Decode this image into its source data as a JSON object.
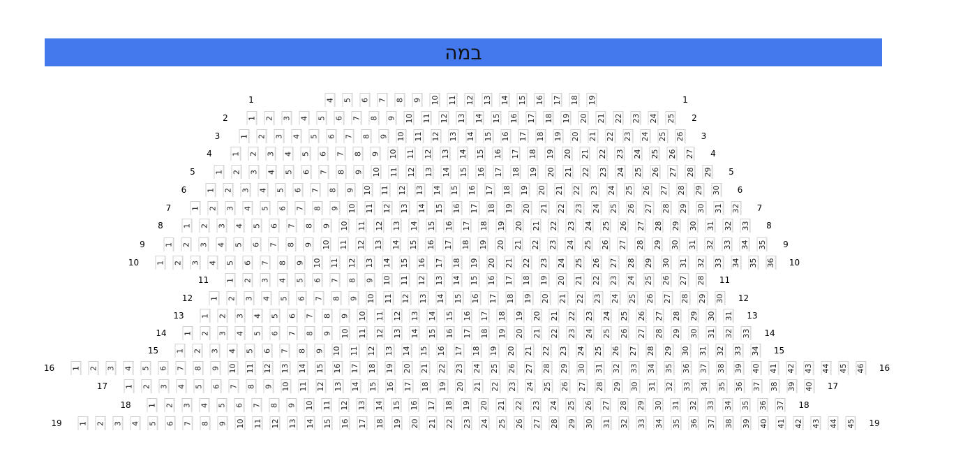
{
  "stage": {
    "label": "במה",
    "color": "#4479ee"
  },
  "rows": [
    {
      "row": "1",
      "first": 4,
      "last": 19
    },
    {
      "row": "2",
      "first": 1,
      "last": 25
    },
    {
      "row": "3",
      "first": 1,
      "last": 26
    },
    {
      "row": "4",
      "first": 1,
      "last": 27
    },
    {
      "row": "5",
      "first": 1,
      "last": 29
    },
    {
      "row": "6",
      "first": 1,
      "last": 30
    },
    {
      "row": "7",
      "first": 1,
      "last": 32
    },
    {
      "row": "8",
      "first": 1,
      "last": 33
    },
    {
      "row": "9",
      "first": 1,
      "last": 35
    },
    {
      "row": "10",
      "first": 1,
      "last": 36
    },
    {
      "row": "11",
      "first": 1,
      "last": 28
    },
    {
      "row": "12",
      "first": 1,
      "last": 30
    },
    {
      "row": "13",
      "first": 1,
      "last": 31
    },
    {
      "row": "14",
      "first": 1,
      "last": 33
    },
    {
      "row": "15",
      "first": 1,
      "last": 34
    },
    {
      "row": "16",
      "first": 1,
      "last": 46
    },
    {
      "row": "17",
      "first": 1,
      "last": 40
    },
    {
      "row": "18",
      "first": 1,
      "last": 37
    },
    {
      "row": "19",
      "first": 1,
      "last": 45
    }
  ]
}
